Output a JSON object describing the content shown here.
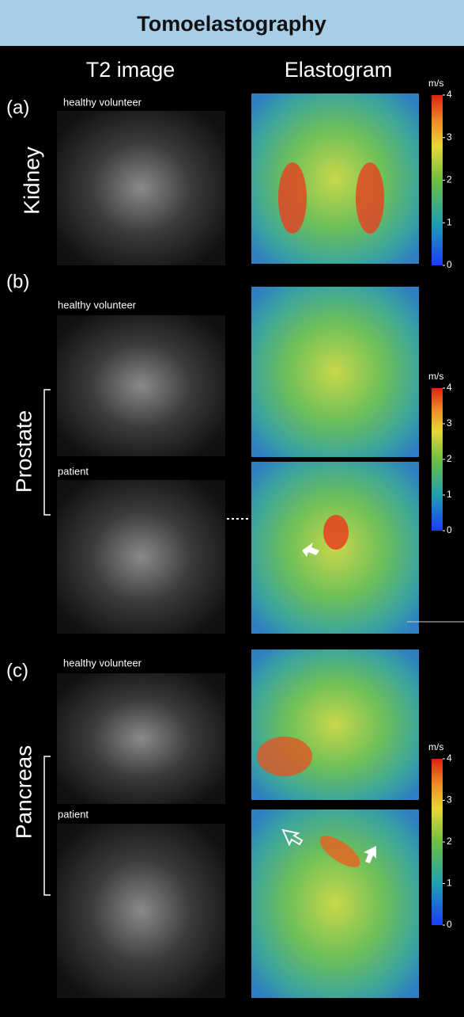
{
  "header": {
    "title": "Tomoelastography"
  },
  "columns": [
    "T2 image",
    "Elastogram"
  ],
  "sections": [
    {
      "label": "(a)",
      "organ": "Kidney",
      "subjects": [
        "healthy volunteer"
      ]
    },
    {
      "label": "(b)",
      "organ": "Prostate",
      "subjects": [
        "healthy volunteer",
        "patient"
      ]
    },
    {
      "label": "(c)",
      "organ": "Pancreas",
      "subjects": [
        "healthy volunteer",
        "patient"
      ]
    }
  ],
  "colorbars": [
    {
      "unit": "m/s",
      "ticks": [
        0,
        1,
        2,
        3,
        4
      ]
    },
    {
      "unit": "m/s",
      "ticks": [
        0,
        1,
        2,
        3,
        4
      ]
    },
    {
      "unit": "m/s",
      "ticks": [
        0,
        1,
        2,
        3,
        4
      ]
    }
  ]
}
